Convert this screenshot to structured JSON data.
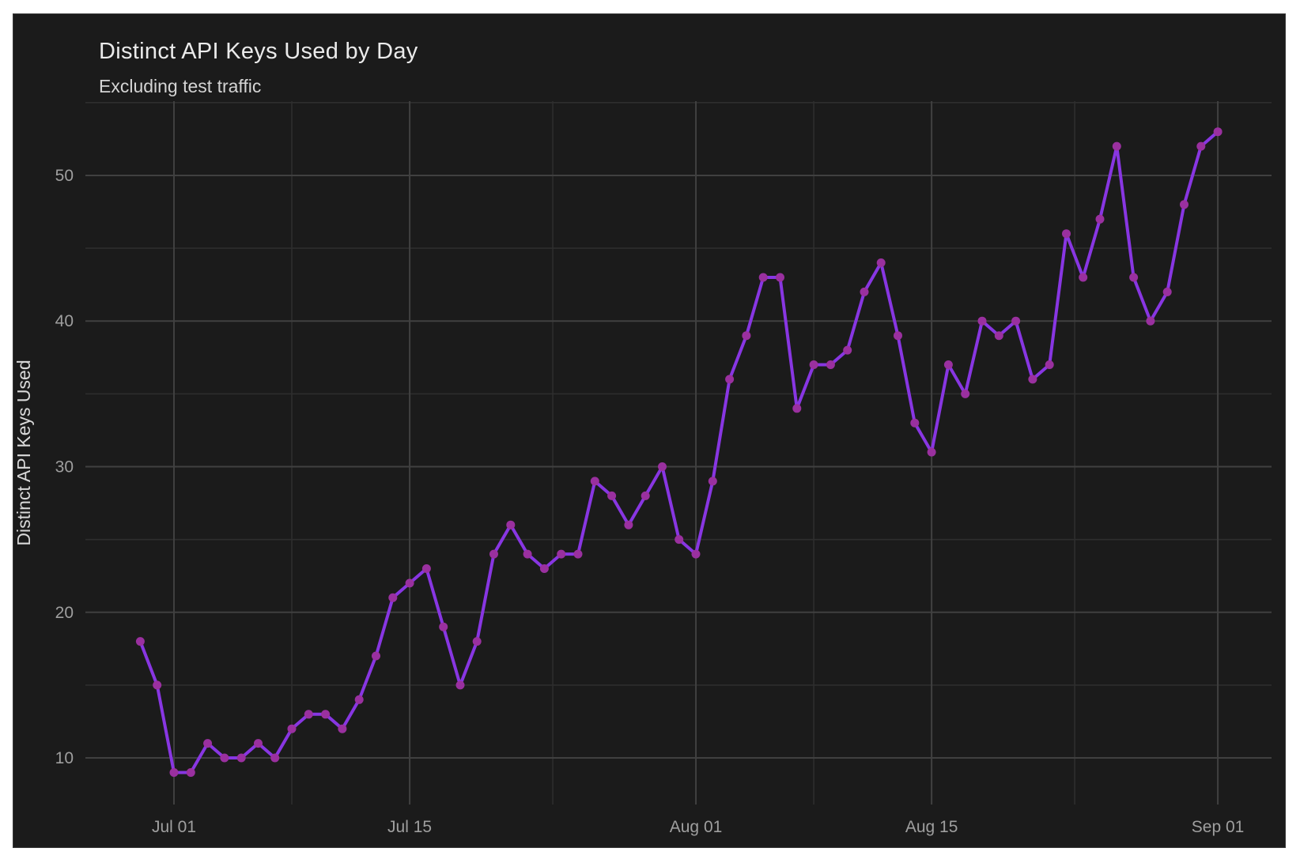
{
  "chart_data": {
    "type": "line",
    "title": "Distinct API Keys Used by Day",
    "subtitle": "Excluding test traffic",
    "xlabel": "",
    "ylabel": "Distinct API Keys Used",
    "legend": "none",
    "grid": "major-and-minor",
    "x": [
      "Jun 29",
      "Jun 30",
      "Jul 01",
      "Jul 02",
      "Jul 03",
      "Jul 04",
      "Jul 05",
      "Jul 06",
      "Jul 07",
      "Jul 08",
      "Jul 09",
      "Jul 10",
      "Jul 11",
      "Jul 12",
      "Jul 13",
      "Jul 14",
      "Jul 15",
      "Jul 16",
      "Jul 17",
      "Jul 18",
      "Jul 19",
      "Jul 20",
      "Jul 21",
      "Jul 22",
      "Jul 23",
      "Jul 24",
      "Jul 25",
      "Jul 26",
      "Jul 27",
      "Jul 28",
      "Jul 29",
      "Jul 30",
      "Jul 31",
      "Aug 01",
      "Aug 02",
      "Aug 03",
      "Aug 04",
      "Aug 05",
      "Aug 06",
      "Aug 07",
      "Aug 08",
      "Aug 09",
      "Aug 10",
      "Aug 11",
      "Aug 12",
      "Aug 13",
      "Aug 14",
      "Aug 15",
      "Aug 16",
      "Aug 17",
      "Aug 18",
      "Aug 19",
      "Aug 20",
      "Aug 21",
      "Aug 22",
      "Aug 23",
      "Aug 24",
      "Aug 25",
      "Aug 26",
      "Aug 27",
      "Aug 28",
      "Aug 29",
      "Aug 30",
      "Aug 31",
      "Sep 01"
    ],
    "values": [
      18,
      15,
      9,
      9,
      11,
      10,
      10,
      11,
      10,
      12,
      13,
      13,
      12,
      14,
      17,
      21,
      22,
      23,
      19,
      15,
      18,
      24,
      26,
      24,
      23,
      24,
      24,
      29,
      28,
      26,
      28,
      30,
      25,
      24,
      29,
      36,
      39,
      43,
      43,
      34,
      37,
      37,
      38,
      42,
      44,
      39,
      33,
      31,
      37,
      35,
      40,
      39,
      40,
      36,
      37,
      46,
      43,
      47,
      52,
      43,
      40,
      42,
      48,
      52,
      53
    ],
    "first_point_day": -2,
    "x_tick_labels": [
      "Jul 01",
      "Jul 15",
      "Aug 01",
      "Aug 15",
      "Sep 01"
    ],
    "x_tick_days": [
      0,
      14,
      31,
      45,
      62
    ],
    "x_minor_days": [
      7,
      22.5,
      38,
      53.5
    ],
    "y_ticks": [
      10,
      20,
      30,
      40,
      50
    ],
    "y_minor_ticks": [
      15,
      25,
      35,
      45,
      55
    ],
    "xlim_days": [
      -5.26,
      65.19
    ],
    "ylim": [
      6.8,
      55.1
    ],
    "colors": {
      "page_bg": "#ffffff",
      "card_bg": "#1b1b1b",
      "card_border": "#3a3a3a",
      "grid_major": "#404040",
      "grid_minor": "#2e2e2e",
      "line": "#8836e2",
      "marker": "#9a309f",
      "tick_label": "#9f9f9f",
      "title": "#ebebeb",
      "subtitle": "#d4d4d4",
      "axis_title": "#d9d9d9"
    }
  }
}
